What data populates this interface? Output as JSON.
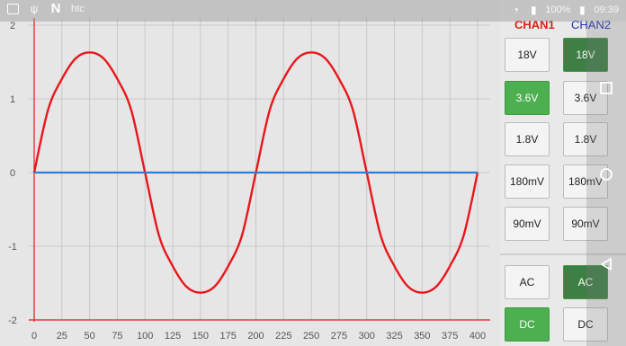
{
  "status_bar": {
    "carrier": "htc",
    "battery": "100%",
    "time": "09:39"
  },
  "panel": {
    "chan1_label": "CHAN1",
    "chan2_label": "CHAN2",
    "volt_rows": [
      {
        "ch1": "18V",
        "ch2": "18V",
        "ch1_on": false,
        "ch2_on": true
      },
      {
        "ch1": "3.6V",
        "ch2": "3.6V",
        "ch1_on": true,
        "ch2_on": false
      },
      {
        "ch1": "1.8V",
        "ch2": "1.8V",
        "ch1_on": false,
        "ch2_on": false
      },
      {
        "ch1": "180mV",
        "ch2": "180mV",
        "ch1_on": false,
        "ch2_on": false
      },
      {
        "ch1": "90mV",
        "ch2": "90mV",
        "ch1_on": false,
        "ch2_on": false
      }
    ],
    "coupling_rows": [
      {
        "ch1": "AC",
        "ch2": "AC",
        "ch1_on": false,
        "ch2_on": true
      },
      {
        "ch1": "DC",
        "ch2": "DC",
        "ch1_on": true,
        "ch2_on": false
      }
    ]
  },
  "chart_data": {
    "type": "line",
    "xlim": [
      0,
      400
    ],
    "ylim": [
      -2,
      2
    ],
    "x_ticks": [
      0,
      25,
      50,
      75,
      100,
      125,
      150,
      175,
      200,
      225,
      250,
      275,
      300,
      325,
      350,
      375,
      400
    ],
    "y_ticks": [
      -2,
      -1,
      0,
      1,
      2
    ],
    "grid": true,
    "series": [
      {
        "color": "#e8171c",
        "x": [
          0,
          12.5,
          25,
          37.5,
          50,
          62.5,
          75,
          87.5,
          100,
          112.5,
          125,
          137.5,
          150,
          162.5,
          175,
          187.5,
          200,
          212.5,
          225,
          237.5,
          250,
          262.5,
          275,
          287.5,
          300,
          312.5,
          325,
          337.5,
          350,
          362.5,
          375,
          387.5,
          400
        ],
        "y": [
          0,
          0.85,
          1.27,
          1.55,
          1.63,
          1.55,
          1.27,
          0.85,
          0,
          -0.85,
          -1.27,
          -1.55,
          -1.63,
          -1.55,
          -1.27,
          -0.85,
          0,
          0.85,
          1.27,
          1.55,
          1.63,
          1.55,
          1.27,
          0.85,
          0,
          -0.85,
          -1.27,
          -1.55,
          -1.63,
          -1.55,
          -1.27,
          -0.85,
          0
        ]
      },
      {
        "color": "#2a7fd4",
        "x": [
          0,
          400
        ],
        "y": [
          0,
          0
        ]
      }
    ]
  }
}
